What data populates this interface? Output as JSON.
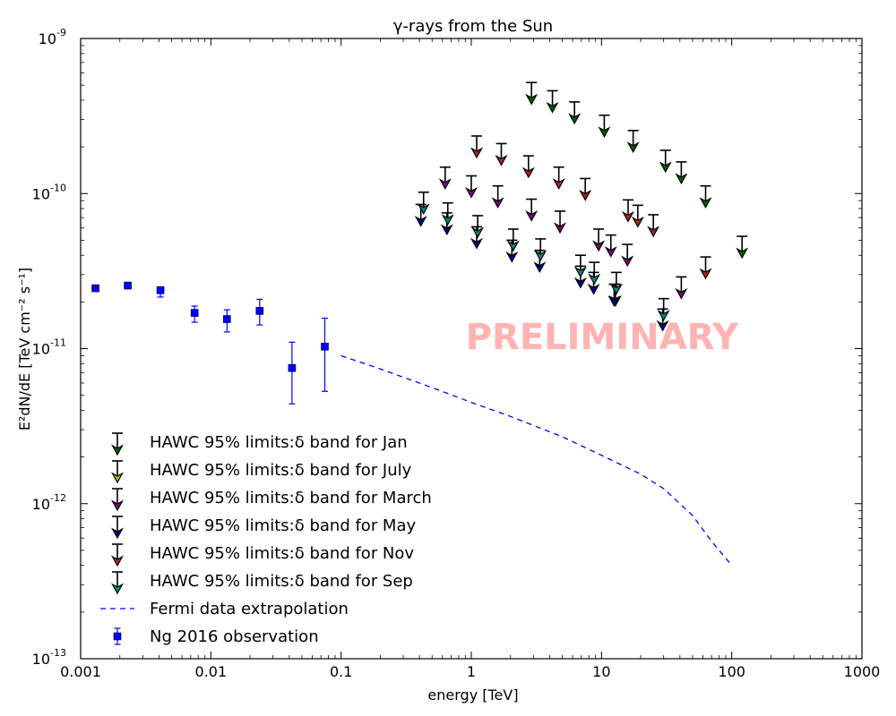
{
  "chart_data": {
    "type": "scatter",
    "title": "γ-rays from the Sun",
    "xlabel": "energy [TeV]",
    "ylabel": "E²dN/dE [TeV cm⁻² s⁻¹]",
    "xscale": "log",
    "yscale": "log",
    "xlim": [
      0.001,
      1000
    ],
    "ylim": [
      1e-13,
      1e-09
    ],
    "x_ticks": [
      {
        "value": 0.001,
        "label": "0.001"
      },
      {
        "value": 0.01,
        "label": "0.01"
      },
      {
        "value": 0.1,
        "label": "0.1"
      },
      {
        "value": 1,
        "label": "1"
      },
      {
        "value": 10,
        "label": "10"
      },
      {
        "value": 100,
        "label": "100"
      },
      {
        "value": 1000,
        "label": "1000"
      }
    ],
    "y_ticks": [
      {
        "value": 1e-13,
        "base": "10",
        "exp": "-13"
      },
      {
        "value": 1e-12,
        "base": "10",
        "exp": "-12"
      },
      {
        "value": 1e-11,
        "base": "10",
        "exp": "-11"
      },
      {
        "value": 1e-10,
        "base": "10",
        "exp": "-10"
      },
      {
        "value": 1e-09,
        "base": "10",
        "exp": "-9"
      }
    ],
    "grid": false,
    "legend_position": "lower-left",
    "watermark": "PRELIMINARY",
    "series": [
      {
        "name": "HAWC 95% limits:δ band for Jan",
        "kind": "upper-limit",
        "color": "#006400",
        "points": [
          [
            2.9,
            5.2e-10
          ],
          [
            4.2,
            4.6e-10
          ],
          [
            6.2,
            3.9e-10
          ],
          [
            10.5,
            3.2e-10
          ],
          [
            17.5,
            2.55e-10
          ],
          [
            31,
            1.9e-10
          ],
          [
            41,
            1.6e-10
          ],
          [
            63,
            1.12e-10
          ],
          [
            120,
            5.3e-11
          ]
        ]
      },
      {
        "name": "HAWC 95% limits:δ band for July",
        "kind": "upper-limit",
        "color": "#b8b800",
        "points": [
          [
            12.8,
            2.6e-11
          ]
        ]
      },
      {
        "name": "HAWC 95% limits:δ band for March",
        "kind": "upper-limit",
        "color": "#800080",
        "points": [
          [
            0.63,
            1.48e-10
          ],
          [
            1.0,
            1.3e-10
          ],
          [
            1.6,
            1.12e-10
          ],
          [
            2.9,
            9.2e-11
          ],
          [
            4.8,
            7.7e-11
          ],
          [
            9.5,
            5.9e-11
          ],
          [
            11.8,
            5.4e-11
          ],
          [
            15.8,
            4.7e-11
          ],
          [
            41,
            2.9e-11
          ]
        ]
      },
      {
        "name": "HAWC 95% limits:δ band for May",
        "kind": "upper-limit",
        "color": "#00008b",
        "points": [
          [
            0.41,
            8.5e-11
          ],
          [
            0.65,
            7.5e-11
          ],
          [
            1.1,
            6.1e-11
          ],
          [
            2.05,
            5e-11
          ],
          [
            3.35,
            4.3e-11
          ],
          [
            6.9,
            3.4e-11
          ],
          [
            8.7,
            3.1e-11
          ],
          [
            12.5,
            2.6e-11
          ],
          [
            29.5,
            1.8e-11
          ]
        ]
      },
      {
        "name": "HAWC 95% limits:δ band for Nov",
        "kind": "upper-limit",
        "color": "#b22222",
        "points": [
          [
            1.1,
            2.35e-10
          ],
          [
            1.7,
            2.1e-10
          ],
          [
            2.75,
            1.75e-10
          ],
          [
            4.7,
            1.48e-10
          ],
          [
            7.5,
            1.25e-10
          ],
          [
            16,
            9.1e-11
          ],
          [
            19,
            8.4e-11
          ],
          [
            25,
            7.3e-11
          ],
          [
            63,
            3.9e-11
          ]
        ]
      },
      {
        "name": "HAWC 95% limits:δ band for Sep",
        "kind": "upper-limit",
        "color": "#008b8b",
        "points": [
          [
            0.43,
            1.02e-10
          ],
          [
            0.66,
            8.7e-11
          ],
          [
            1.12,
            7.2e-11
          ],
          [
            2.1,
            5.9e-11
          ],
          [
            3.4,
            5.1e-11
          ],
          [
            6.9,
            4e-11
          ],
          [
            8.8,
            3.6e-11
          ],
          [
            13,
            3.1e-11
          ],
          [
            30,
            2.1e-11
          ]
        ]
      },
      {
        "name": "Fermi data extrapolation",
        "kind": "dashed-line",
        "color": "#0000ff",
        "points": [
          [
            0.1,
            9e-12
          ],
          [
            0.2,
            7.4e-12
          ],
          [
            0.5,
            5.6e-12
          ],
          [
            1,
            4.5e-12
          ],
          [
            2,
            3.65e-12
          ],
          [
            5,
            2.7e-12
          ],
          [
            10,
            2.05e-12
          ],
          [
            20,
            1.55e-12
          ],
          [
            30,
            1.25e-12
          ],
          [
            50,
            8.4e-13
          ],
          [
            70,
            5.7e-13
          ],
          [
            100,
            4e-13
          ]
        ]
      },
      {
        "name": "Ng 2016 observation",
        "kind": "points-errorbars",
        "color": "#0000ff",
        "points": [
          {
            "x": 0.0013,
            "y": 2.45e-11,
            "ylo": 2.45e-11,
            "yhi": 2.45e-11
          },
          {
            "x": 0.0023,
            "y": 2.55e-11,
            "ylo": 2.55e-11,
            "yhi": 2.55e-11
          },
          {
            "x": 0.0041,
            "y": 2.38e-11,
            "ylo": 2.15e-11,
            "yhi": 2.5e-11
          },
          {
            "x": 0.0075,
            "y": 1.7e-11,
            "ylo": 1.48e-11,
            "yhi": 1.88e-11
          },
          {
            "x": 0.0133,
            "y": 1.55e-11,
            "ylo": 1.28e-11,
            "yhi": 1.78e-11
          },
          {
            "x": 0.0237,
            "y": 1.75e-11,
            "ylo": 1.42e-11,
            "yhi": 2.08e-11
          },
          {
            "x": 0.042,
            "y": 7.5e-12,
            "ylo": 4.4e-12,
            "yhi": 1.1e-11
          },
          {
            "x": 0.075,
            "y": 1.03e-11,
            "ylo": 5.3e-12,
            "yhi": 1.57e-11
          }
        ]
      }
    ]
  }
}
